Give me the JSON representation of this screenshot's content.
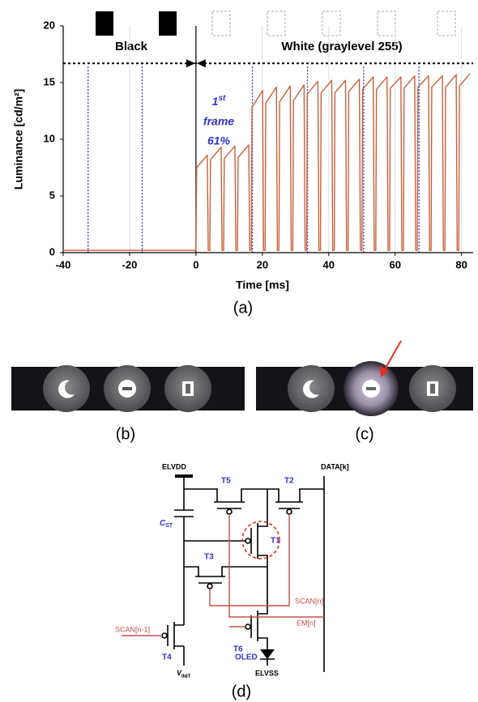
{
  "chart_data": {
    "type": "line",
    "y_label": "Luminance [cd/m²]",
    "x_label": "Time [ms]",
    "xlim": [
      -40,
      83.5
    ],
    "ylim": [
      0,
      20
    ],
    "xticks": [
      -40,
      -20,
      0,
      20,
      40,
      60,
      80
    ],
    "yticks": [
      0,
      5,
      10,
      15,
      20
    ],
    "grid": true,
    "color": "#c8623e",
    "x": [
      -40,
      0,
      0.2,
      3.4,
      3.7,
      4.17,
      4.37,
      7.57,
      7.87,
      8.33,
      8.53,
      11.73,
      12.03,
      12.5,
      12.7,
      15.9,
      16.2,
      16.67,
      16.87,
      20.07,
      20.37,
      20.83,
      21.03,
      24.23,
      24.53,
      25,
      25.2,
      28.4,
      28.7,
      29.17,
      29.37,
      32.57,
      32.87,
      33.33,
      33.53,
      36.73,
      37.03,
      37.5,
      37.7,
      40.9,
      41.2,
      41.67,
      41.87,
      45.07,
      45.37,
      45.83,
      46.03,
      49.23,
      49.53,
      50,
      50.2,
      53.4,
      53.7,
      54.17,
      54.37,
      57.57,
      57.87,
      58.33,
      58.53,
      61.73,
      62.03,
      62.5,
      62.7,
      65.9,
      66.2,
      66.67,
      66.87,
      70.07,
      70.37,
      70.83,
      71.03,
      74.23,
      74.53,
      75,
      75.2,
      78.4,
      78.7,
      79.17,
      79.37,
      82.57
    ],
    "values": [
      0.2,
      0.2,
      7.5,
      8.6,
      0.2,
      0.2,
      8.2,
      9.3,
      0.2,
      0.2,
      8.3,
      9.4,
      0.2,
      0.2,
      8.4,
      9.5,
      0.2,
      0.2,
      12.8,
      14.3,
      0.2,
      0.2,
      13.2,
      14.6,
      0.2,
      0.2,
      13.3,
      14.7,
      0.2,
      0.2,
      13.4,
      14.8,
      0.2,
      0.2,
      14.0,
      15.1,
      0.2,
      0.2,
      14.1,
      15.2,
      0.2,
      0.2,
      14.1,
      15.2,
      0.2,
      0.2,
      14.2,
      15.3,
      0.2,
      0.2,
      14.4,
      15.5,
      0.2,
      0.2,
      14.4,
      15.5,
      0.2,
      0.2,
      14.5,
      15.5,
      0.2,
      0.2,
      14.5,
      15.6,
      0.2,
      0.2,
      14.6,
      15.6,
      0.2,
      0.2,
      14.6,
      15.6,
      0.2,
      0.2,
      14.6,
      15.7,
      0.2,
      0.2,
      14.7,
      15.8
    ],
    "switch_time": 0,
    "frame_boundaries": [
      -32.5,
      -16.2,
      17,
      33.6,
      50.5,
      67.2
    ],
    "reference_line": 16.7,
    "labels": {
      "black": "Black",
      "white": "White (graylevel 255)"
    },
    "annotation": {
      "number": "1",
      "suffix": "st",
      "word": "frame",
      "ratio": "61%"
    }
  },
  "captions": {
    "a": "(a)",
    "b": "(b)",
    "c": "(c)",
    "d": "(d)"
  },
  "circuit": {
    "elvdd": "ELVDD",
    "data": "DATA[k]",
    "t5": "T5",
    "t2": "T2",
    "cst": {
      "main": "C",
      "sub": "ST"
    },
    "t1": "T1",
    "t3": "T3",
    "scan_n": "SCAN[n]",
    "scan_prev": "SCAN[n-1]",
    "em": "EM[n]",
    "t4": "T4",
    "t6": "T6",
    "oled": "OLED",
    "vinit": {
      "main": "V",
      "sub": "INIT"
    },
    "elvss": "ELVSS"
  }
}
